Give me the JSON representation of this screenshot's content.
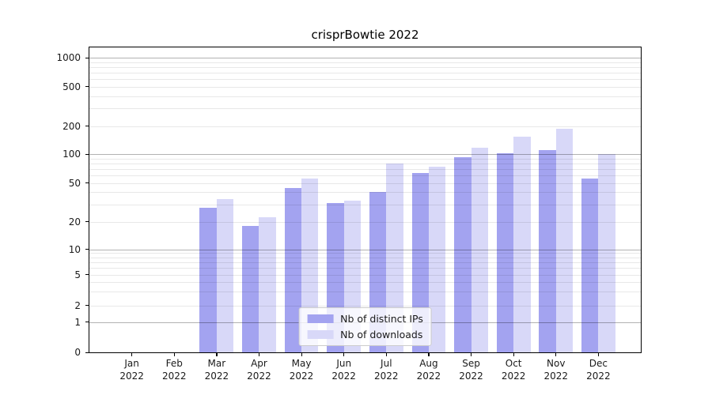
{
  "figure": {
    "title": "crisprBowtie 2022"
  },
  "chart_data": {
    "type": "bar",
    "title": "crisprBowtie 2022",
    "categories": [
      "Jan 2022",
      "Feb 2022",
      "Mar 2022",
      "Apr 2022",
      "May 2022",
      "Jun 2022",
      "Jul 2022",
      "Aug 2022",
      "Sep 2022",
      "Oct 2022",
      "Nov 2022",
      "Dec 2022"
    ],
    "series": [
      {
        "name": "Nb of distinct IPs",
        "color": "#a3a3f0",
        "values": [
          0,
          0,
          28,
          18,
          44,
          31,
          40,
          63,
          93,
          103,
          110,
          56
        ]
      },
      {
        "name": "Nb of downloads",
        "color": "#d8d8f8",
        "values": [
          0,
          0,
          34,
          22,
          56,
          33,
          80,
          74,
          116,
          153,
          188,
          100
        ]
      }
    ],
    "xlabel": "",
    "ylabel": "",
    "yscale": "symlog",
    "ylim": [
      0,
      1000
    ],
    "y_tick_labels": [
      0,
      1,
      2,
      5,
      10,
      20,
      50,
      100,
      200,
      500,
      1000
    ],
    "grid": true,
    "legend_position": "lower center",
    "colors": {
      "major_grid": "rgba(0,0,0,0.30)",
      "minor_grid": "rgba(0,0,0,0.09)",
      "spine": "#000000",
      "text": "#1a1a1a"
    }
  }
}
